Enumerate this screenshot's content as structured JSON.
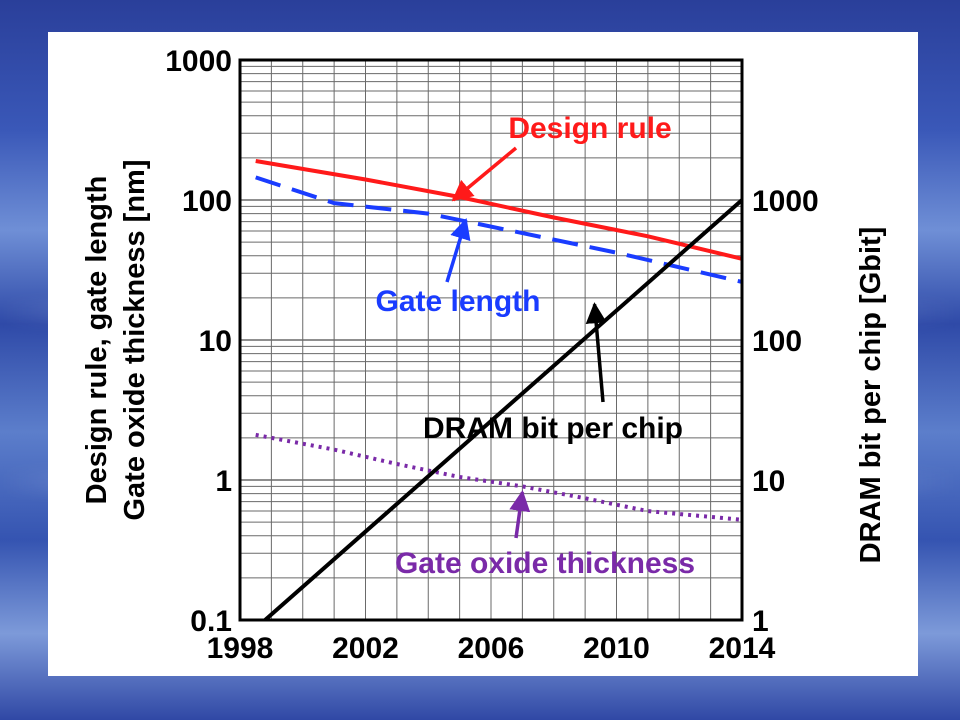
{
  "chart_data": {
    "type": "line",
    "x_ticks": [
      "1998",
      "2002",
      "2006",
      "2010",
      "2014"
    ],
    "xlim": [
      1998,
      2014
    ],
    "left_axis": {
      "label_line1": "Design rule, gate length",
      "label_line2": "Gate oxide thickness [nm]",
      "scale": "log",
      "ylim": [
        0.1,
        1000
      ],
      "tick_labels": [
        "1000",
        "100",
        "10",
        "1",
        "0.1"
      ]
    },
    "right_axis": {
      "label": "DRAM bit per chip [Gbit]",
      "scale": "log",
      "ylim": [
        1,
        1000
      ],
      "tick_labels": [
        "1000",
        "100",
        "10",
        "1"
      ]
    },
    "grid": true,
    "series": [
      {
        "name": "Design rule",
        "axis": "left",
        "color": "#ff1a1a",
        "style": "solid",
        "x": [
          1998.5,
          2002,
          2005,
          2008,
          2011,
          2014
        ],
        "y": [
          190,
          140,
          105,
          75,
          55,
          38
        ]
      },
      {
        "name": "Gate length",
        "axis": "left",
        "color": "#1a3cff",
        "style": "dashed",
        "x": [
          1998.5,
          2001,
          2004,
          2007,
          2010,
          2014
        ],
        "y": [
          145,
          95,
          80,
          58,
          42,
          26
        ]
      },
      {
        "name": "Gate oxide thickness",
        "axis": "left",
        "color": "#7a2aa8",
        "style": "dotted",
        "x": [
          1998.5,
          2001,
          2003,
          2005,
          2007,
          2009,
          2011,
          2014
        ],
        "y": [
          2.1,
          1.65,
          1.3,
          1.05,
          0.9,
          0.74,
          0.6,
          0.52
        ]
      },
      {
        "name": "DRAM bit per chip",
        "axis": "right",
        "color": "#000000",
        "style": "solid",
        "x": [
          1998.8,
          2014
        ],
        "y": [
          1,
          1000
        ]
      }
    ],
    "annotations": [
      {
        "text": "Design rule",
        "color": "#ff1a1a",
        "target_x": 2004.8,
        "target_y": 100
      },
      {
        "text": "Gate length",
        "color": "#1a3cff",
        "target_x": 2005.2,
        "target_y": 72
      },
      {
        "text": "DRAM bit per chip",
        "color": "#000000",
        "target_x": 2009.3,
        "target_y": 180
      },
      {
        "text": "Gate oxide thickness",
        "color": "#7a2aa8",
        "target_x": 2007.0,
        "target_y": 0.82
      }
    ]
  }
}
